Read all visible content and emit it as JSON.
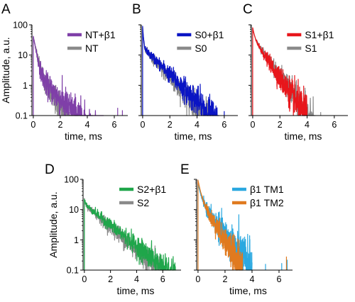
{
  "figure": {
    "panels": [
      {
        "letter": "A"
      },
      {
        "letter": "B"
      },
      {
        "letter": "C"
      },
      {
        "letter": "D"
      },
      {
        "letter": "E"
      }
    ]
  },
  "chart_data": [
    {
      "panel": "A",
      "type": "line",
      "title": "",
      "xlabel": "time, ms",
      "ylabel": "Amplitude, a.u.",
      "yscale": "log",
      "xlim": [
        -0.1,
        7.0
      ],
      "ylim": [
        0.1,
        100
      ],
      "xticks": [
        "0",
        "2",
        "4",
        "6"
      ],
      "yticks": [
        "0.1",
        "1",
        "10",
        "100"
      ],
      "legend_position": "top-right",
      "series": [
        {
          "name": "NT+β1",
          "color": "#7f3fa8",
          "peak": 42,
          "fast_tau": 0.17,
          "fast_frac": 0.94,
          "slow_tau": 1.0,
          "end_x": 5.2,
          "noise": 0.32,
          "spikes": [
            [
              6.25,
              0.18
            ],
            [
              6.6,
              0.15
            ]
          ]
        },
        {
          "name": "NT",
          "color": "#8a8a8a",
          "peak": 40,
          "fast_tau": 0.2,
          "fast_frac": 0.94,
          "slow_tau": 0.78,
          "end_x": 4.4,
          "noise": 0.3,
          "spikes": []
        }
      ]
    },
    {
      "panel": "B",
      "type": "line",
      "title": "",
      "xlabel": "time, ms",
      "ylabel": "",
      "yscale": "log",
      "xlim": [
        -0.1,
        7.0
      ],
      "ylim": [
        0.1,
        100
      ],
      "xticks": [
        "0",
        "2",
        "4",
        "6"
      ],
      "yticks": [],
      "legend_position": "top-right",
      "series": [
        {
          "name": "S0+β1",
          "color": "#0a14c4",
          "peak": 90,
          "fast_tau": 0.05,
          "fast_frac": 0.8,
          "slow_tau": 0.97,
          "end_x": 5.6,
          "noise": 0.3,
          "spikes": [
            [
              6.0,
              0.14
            ]
          ]
        },
        {
          "name": "S0",
          "color": "#8a8a8a",
          "peak": 85,
          "fast_tau": 0.05,
          "fast_frac": 0.8,
          "slow_tau": 0.88,
          "end_x": 5.2,
          "noise": 0.3,
          "spikes": []
        }
      ]
    },
    {
      "panel": "C",
      "type": "line",
      "title": "",
      "xlabel": "time, ms",
      "ylabel": "",
      "yscale": "log",
      "xlim": [
        -0.1,
        7.0
      ],
      "ylim": [
        0.1,
        100
      ],
      "xticks": [
        "0",
        "2",
        "4",
        "6"
      ],
      "yticks": [],
      "legend_position": "top-right",
      "series": [
        {
          "name": "S1+β1",
          "color": "#e8161b",
          "peak": 80,
          "fast_tau": 0.12,
          "fast_frac": 0.55,
          "slow_tau": 0.66,
          "end_x": 4.0,
          "noise": 0.35,
          "spikes": []
        },
        {
          "name": "S1",
          "color": "#8a8a8a",
          "peak": 78,
          "fast_tau": 0.12,
          "fast_frac": 0.5,
          "slow_tau": 0.68,
          "end_x": 4.6,
          "noise": 0.3,
          "spikes": [
            [
              5.0,
              0.13
            ]
          ]
        }
      ]
    },
    {
      "panel": "D",
      "type": "line",
      "title": "",
      "xlabel": "time, ms",
      "ylabel": "Amplitude, a.u.",
      "yscale": "log",
      "xlim": [
        -0.1,
        7.4
      ],
      "ylim": [
        0.1,
        100
      ],
      "xticks": [
        "0",
        "2",
        "4",
        "6"
      ],
      "yticks": [
        "0.1",
        "1",
        "10",
        "100"
      ],
      "legend_position": "top-right",
      "series": [
        {
          "name": "S2+β1",
          "color": "#1fa64a",
          "peak": 22,
          "fast_tau": 0.08,
          "fast_frac": 0.3,
          "slow_tau": 1.25,
          "end_x": 7.0,
          "noise": 0.25,
          "spikes": []
        },
        {
          "name": "S2",
          "color": "#8a8a8a",
          "peak": 21,
          "fast_tau": 0.08,
          "fast_frac": 0.3,
          "slow_tau": 1.15,
          "end_x": 6.3,
          "noise": 0.25,
          "spikes": []
        }
      ]
    },
    {
      "panel": "E",
      "type": "line",
      "title": "",
      "xlabel": "time, ms",
      "ylabel": "",
      "yscale": "log",
      "xlim": [
        -0.1,
        7.0
      ],
      "ylim": [
        0.1,
        100
      ],
      "xticks": [
        "0",
        "2",
        "4",
        "6"
      ],
      "yticks": [],
      "legend_position": "top-right",
      "series": [
        {
          "name": "β1 TM1",
          "color": "#2aa8e0",
          "peak": 70,
          "fast_tau": 0.18,
          "fast_frac": 0.7,
          "slow_tau": 0.75,
          "end_x": 4.0,
          "noise": 0.45,
          "spikes": [
            [
              3.6,
              0.4
            ],
            [
              5.0,
              0.16
            ],
            [
              6.2,
              0.17
            ],
            [
              6.6,
              0.22
            ]
          ]
        },
        {
          "name": "β1 TM2",
          "color": "#e07a1f",
          "peak": 95,
          "fast_tau": 0.15,
          "fast_frac": 0.7,
          "slow_tau": 0.58,
          "end_x": 3.3,
          "noise": 0.35,
          "spikes": [
            [
              6.55,
              0.28
            ]
          ]
        }
      ]
    }
  ]
}
